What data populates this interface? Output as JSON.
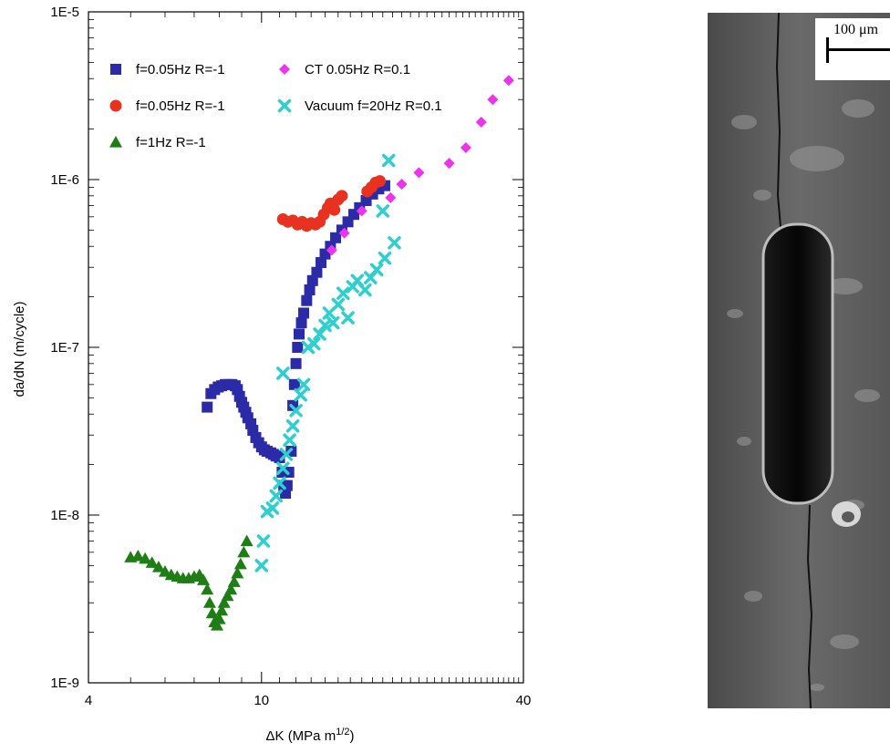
{
  "chart_data": {
    "type": "scatter",
    "title": "",
    "xlabel": "ΔK (MPa m",
    "xlabel_sup": "1/2",
    "xlabel_close": ")",
    "ylabel": "da/dN (m/cycle)",
    "x_scale": "log",
    "y_scale": "log",
    "xlim": [
      4,
      40
    ],
    "ylim": [
      1e-09,
      1e-05
    ],
    "x_ticks": [
      {
        "value": 4,
        "label": "4"
      },
      {
        "value": 10,
        "label": "10"
      },
      {
        "value": 40,
        "label": "40"
      }
    ],
    "y_ticks": [
      {
        "value": 1e-09,
        "label": "1E-9"
      },
      {
        "value": 1e-08,
        "label": "1E-8"
      },
      {
        "value": 1e-07,
        "label": "1E-7"
      },
      {
        "value": 1e-06,
        "label": "1E-6"
      },
      {
        "value": 1e-05,
        "label": "1E-5"
      }
    ],
    "grid": false,
    "legend_position": "top",
    "series": [
      {
        "name": "f=0.05Hz R=-1",
        "marker": "square",
        "color": "#2b2ba8",
        "points": [
          [
            7.5,
            4.4e-08
          ],
          [
            7.65,
            5.3e-08
          ],
          [
            7.8,
            5.6e-08
          ],
          [
            7.95,
            5.8e-08
          ],
          [
            8.1,
            5.9e-08
          ],
          [
            8.25,
            6e-08
          ],
          [
            8.4,
            6e-08
          ],
          [
            8.55,
            6e-08
          ],
          [
            8.7,
            5.9e-08
          ],
          [
            8.8,
            5.6e-08
          ],
          [
            8.9,
            5.1e-08
          ],
          [
            9.0,
            4.7e-08
          ],
          [
            9.1,
            4.4e-08
          ],
          [
            9.2,
            4.1e-08
          ],
          [
            9.3,
            3.8e-08
          ],
          [
            9.45,
            3.5e-08
          ],
          [
            9.55,
            3.2e-08
          ],
          [
            9.7,
            2.9e-08
          ],
          [
            9.85,
            2.7e-08
          ],
          [
            10.0,
            2.55e-08
          ],
          [
            10.15,
            2.45e-08
          ],
          [
            10.3,
            2.4e-08
          ],
          [
            10.5,
            2.35e-08
          ],
          [
            10.65,
            2.3e-08
          ],
          [
            10.8,
            2.25e-08
          ],
          [
            11.0,
            2.2e-08
          ],
          [
            11.15,
            1.8e-08
          ],
          [
            11.25,
            1.5e-08
          ],
          [
            11.35,
            1.35e-08
          ],
          [
            11.45,
            1.5e-08
          ],
          [
            11.55,
            1.8e-08
          ],
          [
            11.7,
            2.4e-08
          ],
          [
            11.8,
            4.5e-08
          ],
          [
            11.9,
            6e-08
          ],
          [
            12.0,
            8e-08
          ],
          [
            12.1,
            1e-07
          ],
          [
            12.2,
            1.2e-07
          ],
          [
            12.35,
            1.4e-07
          ],
          [
            12.5,
            1.6e-07
          ],
          [
            12.7,
            1.9e-07
          ],
          [
            12.9,
            2.2e-07
          ],
          [
            13.1,
            2.5e-07
          ],
          [
            13.4,
            2.8e-07
          ],
          [
            13.7,
            3.2e-07
          ],
          [
            14.0,
            3.6e-07
          ],
          [
            14.4,
            4e-07
          ],
          [
            14.8,
            4.5e-07
          ],
          [
            15.3,
            5e-07
          ],
          [
            15.8,
            5.6e-07
          ],
          [
            16.3,
            6.2e-07
          ],
          [
            16.8,
            6.8e-07
          ],
          [
            17.4,
            7.5e-07
          ],
          [
            18.0,
            8.2e-07
          ],
          [
            18.6,
            8.8e-07
          ],
          [
            19.2,
            9.2e-07
          ]
        ]
      },
      {
        "name": "f=0.05Hz R=-1",
        "marker": "circle",
        "color": "#e8311e",
        "points": [
          [
            11.2,
            5.8e-07
          ],
          [
            11.5,
            5.6e-07
          ],
          [
            11.8,
            5.7e-07
          ],
          [
            12.1,
            5.4e-07
          ],
          [
            12.4,
            5.6e-07
          ],
          [
            12.7,
            5.3e-07
          ],
          [
            13.0,
            5.5e-07
          ],
          [
            13.3,
            5.4e-07
          ],
          [
            13.6,
            5.6e-07
          ],
          [
            13.9,
            6.2e-07
          ],
          [
            14.2,
            6.8e-07
          ],
          [
            14.4,
            7.2e-07
          ],
          [
            14.7,
            6.6e-07
          ],
          [
            15.0,
            7.6e-07
          ],
          [
            15.3,
            8e-07
          ],
          [
            17.5,
            8.5e-07
          ],
          [
            17.9,
            9e-07
          ],
          [
            18.3,
            9.6e-07
          ],
          [
            18.7,
            9.8e-07
          ]
        ]
      },
      {
        "name": "f=1Hz R=-1",
        "marker": "triangle",
        "color": "#1e7d14",
        "points": [
          [
            5.0,
            5.6e-09
          ],
          [
            5.2,
            5.7e-09
          ],
          [
            5.4,
            5.5e-09
          ],
          [
            5.6,
            5.2e-09
          ],
          [
            5.8,
            4.9e-09
          ],
          [
            6.0,
            4.6e-09
          ],
          [
            6.2,
            4.4e-09
          ],
          [
            6.4,
            4.3e-09
          ],
          [
            6.6,
            4.2e-09
          ],
          [
            6.8,
            4.2e-09
          ],
          [
            7.0,
            4.3e-09
          ],
          [
            7.2,
            4.4e-09
          ],
          [
            7.35,
            4.1e-09
          ],
          [
            7.5,
            3.6e-09
          ],
          [
            7.6,
            3e-09
          ],
          [
            7.7,
            2.6e-09
          ],
          [
            7.8,
            2.3e-09
          ],
          [
            7.9,
            2.2e-09
          ],
          [
            8.0,
            2.4e-09
          ],
          [
            8.1,
            2.7e-09
          ],
          [
            8.2,
            3e-09
          ],
          [
            8.35,
            3.3e-09
          ],
          [
            8.5,
            3.6e-09
          ],
          [
            8.65,
            4e-09
          ],
          [
            8.8,
            4.5e-09
          ],
          [
            8.95,
            5.1e-09
          ],
          [
            9.1,
            6e-09
          ],
          [
            9.25,
            7e-09
          ]
        ]
      },
      {
        "name": "CT 0.05Hz R=0.1",
        "marker": "diamond",
        "color": "#ee33ee",
        "points": [
          [
            14.5,
            3.8e-07
          ],
          [
            15.5,
            4.8e-07
          ],
          [
            17.0,
            6.5e-07
          ],
          [
            19.8,
            7.8e-07
          ],
          [
            21.0,
            9.4e-07
          ],
          [
            23.0,
            1.1e-06
          ],
          [
            27.0,
            1.25e-06
          ],
          [
            29.5,
            1.55e-06
          ],
          [
            32.0,
            2.2e-06
          ],
          [
            34.0,
            3e-06
          ],
          [
            37.0,
            3.9e-06
          ]
        ]
      },
      {
        "name": "Vacuum f=20Hz R=0.1",
        "marker": "cross",
        "color": "#2ecfcf",
        "points": [
          [
            10.0,
            5e-09
          ],
          [
            10.1,
            7e-09
          ],
          [
            10.3,
            1.05e-08
          ],
          [
            10.6,
            1.1e-08
          ],
          [
            10.8,
            1.3e-08
          ],
          [
            11.0,
            1.55e-08
          ],
          [
            11.2,
            1.9e-08
          ],
          [
            11.4,
            2.3e-08
          ],
          [
            11.6,
            2.8e-08
          ],
          [
            11.8,
            3.4e-08
          ],
          [
            12.0,
            4.2e-08
          ],
          [
            12.3,
            5.2e-08
          ],
          [
            12.5,
            6e-08
          ],
          [
            11.2,
            7e-08
          ],
          [
            12.8,
            1e-07
          ],
          [
            13.2,
            1.05e-07
          ],
          [
            13.6,
            1.2e-07
          ],
          [
            14.0,
            1.35e-07
          ],
          [
            14.3,
            1.6e-07
          ],
          [
            14.6,
            1.4e-07
          ],
          [
            15.0,
            1.8e-07
          ],
          [
            15.4,
            2.1e-07
          ],
          [
            15.8,
            1.5e-07
          ],
          [
            16.2,
            2.3e-07
          ],
          [
            16.6,
            2.5e-07
          ],
          [
            17.3,
            2.2e-07
          ],
          [
            17.8,
            2.6e-07
          ],
          [
            18.4,
            2.9e-07
          ],
          [
            19.2,
            3.4e-07
          ],
          [
            20.2,
            4.2e-07
          ],
          [
            19.0,
            6.5e-07
          ],
          [
            19.6,
            1.3e-06
          ]
        ]
      }
    ]
  },
  "image_panel": {
    "scale_label": "100 μm"
  }
}
